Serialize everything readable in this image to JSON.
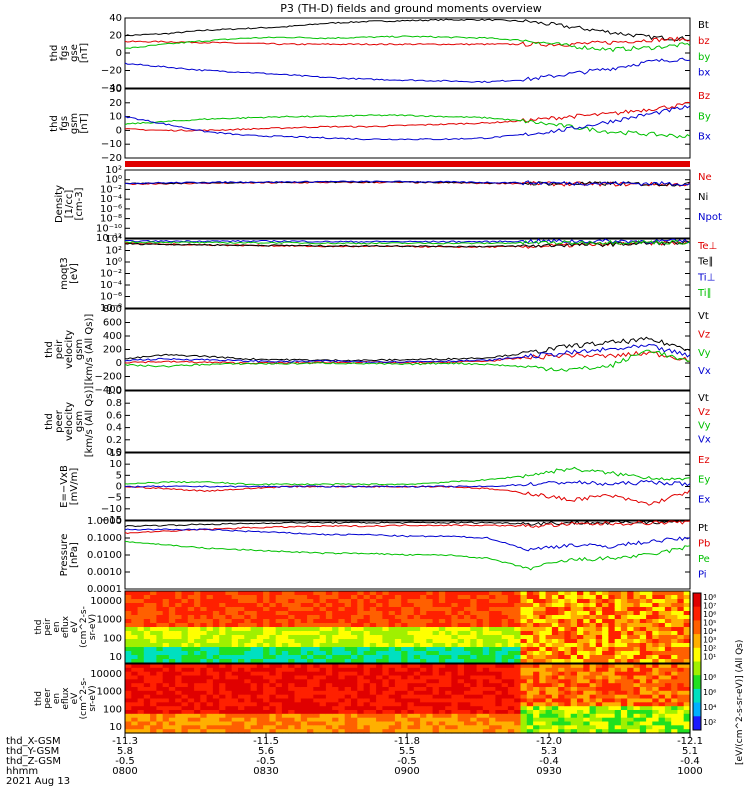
{
  "title": "P3 (TH-D) fields and ground moments overview",
  "footer": {
    "rows": [
      {
        "label": "thd_X-GSM",
        "values": [
          "-11.3",
          "-11.5",
          "-11.8",
          "-12.0",
          "-12.1"
        ]
      },
      {
        "label": "thd_Y-GSM",
        "values": [
          "5.8",
          "5.6",
          "5.5",
          "5.3",
          "5.1"
        ]
      },
      {
        "label": "thd_Z-GSM",
        "values": [
          "-0.5",
          "-0.5",
          "-0.5",
          "-0.4",
          "-0.4"
        ]
      },
      {
        "label": "hhmm",
        "values": [
          "0800",
          "0830",
          "0900",
          "0930",
          "1000"
        ]
      }
    ],
    "date": "2021 Aug 13"
  },
  "colorbar_label": "[eV/(cm^2-s-sr-eV)] (All Qs)",
  "colorbar_ticks": [
    "10⁸",
    "10⁷",
    "10⁶",
    "10⁵",
    "10⁴",
    "10³",
    "10²",
    "10¹"
  ],
  "colorbar2_ticks": [
    "10⁸",
    "10⁶",
    "10⁴",
    "10²"
  ],
  "chart_data": {
    "type": "line",
    "x_range": [
      "0800",
      "1000"
    ],
    "panels": [
      {
        "id": "fgs-gse",
        "ylabel": [
          "thd",
          "fgs",
          "gse",
          "[nT]"
        ],
        "ylim": [
          -40,
          40
        ],
        "ticks": [
          "40",
          "20",
          "0",
          "−20",
          "−40"
        ],
        "legend": [
          {
            "name": "Bt",
            "color": "#000000"
          },
          {
            "name": "bz",
            "color": "#e00000"
          },
          {
            "name": "by",
            "color": "#00c000"
          },
          {
            "name": "bx",
            "color": "#0000d0"
          }
        ],
        "series": [
          {
            "name": "Bt",
            "values": [
              20,
              22,
              26,
              28,
              30,
              34,
              36,
              37,
              38,
              38,
              36,
              30,
              24,
              18,
              16
            ]
          },
          {
            "name": "bz",
            "values": [
              13,
              13,
              12,
              11,
              10,
              10,
              10,
              10,
              10,
              10,
              10,
              10,
              12,
              15,
              16
            ]
          },
          {
            "name": "by",
            "values": [
              5,
              10,
              14,
              17,
              18,
              17,
              18,
              19,
              18,
              17,
              14,
              8,
              4,
              6,
              10
            ]
          },
          {
            "name": "bx",
            "values": [
              -12,
              -16,
              -20,
              -22,
              -25,
              -28,
              -30,
              -31,
              -32,
              -33,
              -30,
              -24,
              -18,
              -10,
              -6
            ]
          }
        ]
      },
      {
        "id": "fgs-gsm",
        "ylabel": [
          "thd",
          "fgs",
          "gsm",
          "[nT]"
        ],
        "ylim": [
          -25,
          30
        ],
        "ticks": [
          "30",
          "20",
          "10",
          "0",
          "−10",
          "−20"
        ],
        "legend": [
          {
            "name": "Bz",
            "color": "#e00000"
          },
          {
            "name": "By",
            "color": "#00c000"
          },
          {
            "name": "Bx",
            "color": "#0000d0"
          }
        ],
        "series": [
          {
            "name": "Bz",
            "values": [
              -2,
              -3,
              -3,
              -2,
              -1,
              0,
              0,
              1,
              2,
              3,
              5,
              8,
              10,
              14,
              18
            ]
          },
          {
            "name": "By",
            "values": [
              2,
              4,
              6,
              7,
              8,
              8,
              9,
              9,
              8,
              7,
              4,
              0,
              -4,
              -6,
              -8
            ]
          },
          {
            "name": "Bx",
            "values": [
              8,
              2,
              -4,
              -7,
              -8,
              -9,
              -10,
              -10,
              -10,
              -9,
              -6,
              -2,
              4,
              10,
              16
            ]
          }
        ]
      },
      {
        "id": "density",
        "ylabel": [
          "Density",
          "[1/cc]",
          "[cm-3]"
        ],
        "ylim": [
          -14,
          3
        ],
        "log": true,
        "ticks": [
          "10²",
          "10⁰",
          "10⁻²",
          "10⁻⁴",
          "10⁻⁶",
          "10⁻⁸",
          "10⁻¹⁰",
          "10⁻¹²"
        ],
        "legend": [
          {
            "name": "Ne",
            "color": "#e00000"
          },
          {
            "name": "Ni",
            "color": "#000000"
          },
          {
            "name": "Npot",
            "color": "#0000d0"
          }
        ],
        "series": [
          {
            "name": "Ne",
            "values": [
              -0.5,
              -0.4,
              -0.3,
              -0.2,
              -0.2,
              -0.1,
              -0.1,
              -0.1,
              -0.2,
              -0.3,
              -0.4,
              -0.5,
              -0.5,
              -0.6,
              -0.6
            ]
          },
          {
            "name": "Ni",
            "values": [
              -0.4,
              -0.3,
              -0.2,
              -0.1,
              -0.1,
              0,
              0,
              0,
              -0.1,
              -0.2,
              -0.3,
              -0.4,
              -0.4,
              -0.5,
              -0.5
            ]
          },
          {
            "name": "Npot",
            "values": [
              -0.3,
              -0.2,
              -0.1,
              0,
              0,
              0.1,
              0.1,
              0.1,
              0,
              -0.1,
              -0.2,
              -0.3,
              -0.3,
              -0.4,
              -0.4
            ]
          }
        ]
      },
      {
        "id": "temperature",
        "ylabel": [
          "moqt3",
          "[eV]"
        ],
        "ylim": [
          -9,
          4
        ],
        "log": true,
        "ticks": [
          "10⁴",
          "10²",
          "10⁰",
          "10⁻²",
          "10⁻⁴",
          "10⁻⁶",
          "10⁻⁸"
        ],
        "legend": [
          {
            "name": "Te⊥",
            "color": "#e00000"
          },
          {
            "name": "Te∥",
            "color": "#000000"
          },
          {
            "name": "Ti⊥",
            "color": "#0000d0"
          },
          {
            "name": "Ti∥",
            "color": "#00c000"
          }
        ],
        "series": [
          {
            "name": "Te⊥",
            "values": [
              3.2,
              3.0,
              2.9,
              2.8,
              2.7,
              2.6,
              2.6,
              2.6,
              2.5,
              2.5,
              2.6,
              2.8,
              3.0,
              3.2,
              3.3
            ]
          },
          {
            "name": "Te∥",
            "values": [
              3.1,
              3.0,
              2.9,
              2.8,
              2.8,
              2.7,
              2.7,
              2.7,
              2.6,
              2.6,
              2.7,
              2.9,
              3.0,
              3.2,
              3.3
            ]
          },
          {
            "name": "Ti⊥",
            "values": [
              3.6,
              3.6,
              3.6,
              3.6,
              3.6,
              3.5,
              3.5,
              3.5,
              3.5,
              3.5,
              3.6,
              3.6,
              3.6,
              3.6,
              3.6
            ]
          },
          {
            "name": "Ti∥",
            "values": [
              3.4,
              3.4,
              3.3,
              3.3,
              3.3,
              3.2,
              3.2,
              3.2,
              3.2,
              3.2,
              3.3,
              3.3,
              3.4,
              3.4,
              3.4
            ]
          }
        ]
      },
      {
        "id": "peir-velocity",
        "ylabel": [
          "thd",
          "peir",
          "velocity",
          "gsm",
          "[km/s (All Qs)]"
        ],
        "ylim": [
          -400,
          800
        ],
        "ticks": [
          "800",
          "600",
          "400",
          "200",
          "0",
          "−200",
          "−400"
        ],
        "legend": [
          {
            "name": "Vt",
            "color": "#000000"
          },
          {
            "name": "Vz",
            "color": "#e00000"
          },
          {
            "name": "Vy",
            "color": "#00c000"
          },
          {
            "name": "Vx",
            "color": "#0000d0"
          }
        ],
        "series": [
          {
            "name": "Vt",
            "values": [
              60,
              120,
              100,
              60,
              50,
              40,
              40,
              50,
              60,
              80,
              150,
              250,
              300,
              350,
              200
            ]
          },
          {
            "name": "Vz",
            "values": [
              10,
              20,
              10,
              0,
              0,
              10,
              10,
              0,
              10,
              30,
              80,
              120,
              100,
              150,
              50
            ]
          },
          {
            "name": "Vy",
            "values": [
              -30,
              -50,
              -20,
              -10,
              -10,
              0,
              -10,
              -20,
              0,
              -20,
              -60,
              -100,
              -50,
              200,
              0
            ]
          },
          {
            "name": "Vx",
            "values": [
              40,
              60,
              50,
              30,
              20,
              30,
              20,
              20,
              30,
              40,
              100,
              150,
              200,
              250,
              100
            ]
          }
        ]
      },
      {
        "id": "peer-velocity",
        "ylabel": [
          "thd",
          "peer",
          "velocity",
          "gsm",
          "[km/s (All Qs)]"
        ],
        "ylim": [
          0,
          1
        ],
        "ticks": [
          "1.0",
          "0.8",
          "0.6",
          "0.4",
          "0.2",
          "0.0"
        ],
        "legend": [
          {
            "name": "Vt",
            "color": "#000000"
          },
          {
            "name": "Vz",
            "color": "#e00000"
          },
          {
            "name": "Vy",
            "color": "#00c000"
          },
          {
            "name": "Vx",
            "color": "#0000d0"
          }
        ],
        "series": []
      },
      {
        "id": "efield",
        "ylabel": [
          "E=−VxB",
          "[mV/m]"
        ],
        "ylim": [
          -15,
          15
        ],
        "ticks": [
          "15",
          "10",
          "5",
          "0",
          "−5",
          "−10",
          "−15"
        ],
        "legend": [
          {
            "name": "Ez",
            "color": "#e00000"
          },
          {
            "name": "Ey",
            "color": "#00c000"
          },
          {
            "name": "Ex",
            "color": "#0000d0"
          }
        ],
        "series": [
          {
            "name": "Ez",
            "values": [
              0,
              -1,
              -2,
              -1,
              0,
              0,
              0,
              0,
              0,
              -1,
              -3,
              -6,
              -4,
              -8,
              -2
            ]
          },
          {
            "name": "Ey",
            "values": [
              1,
              2,
              2,
              1,
              1,
              1,
              1,
              1,
              2,
              3,
              5,
              8,
              6,
              4,
              3
            ]
          },
          {
            "name": "Ex",
            "values": [
              0,
              0,
              0,
              0,
              0,
              0,
              0,
              0,
              0,
              0,
              1,
              2,
              1,
              2,
              1
            ]
          }
        ]
      },
      {
        "id": "pressure",
        "ylabel": [
          "Pressure",
          "[nPa]"
        ],
        "ylim": [
          -4,
          0
        ],
        "log": true,
        "ticks": [
          "1.0000",
          "0.1000",
          "0.0100",
          "0.0010",
          "0.0001"
        ],
        "legend": [
          {
            "name": "Pt",
            "color": "#000000"
          },
          {
            "name": "Pb",
            "color": "#e00000"
          },
          {
            "name": "Pe",
            "color": "#00c000"
          },
          {
            "name": "Pi",
            "color": "#0000d0"
          }
        ],
        "series": [
          {
            "name": "Pt",
            "values": [
              -0.3,
              -0.25,
              -0.2,
              -0.15,
              -0.1,
              -0.1,
              -0.1,
              -0.1,
              -0.1,
              -0.1,
              -0.15,
              -0.1,
              -0.1,
              -0.05,
              0
            ]
          },
          {
            "name": "Pb",
            "values": [
              -0.7,
              -0.6,
              -0.5,
              -0.4,
              -0.35,
              -0.3,
              -0.3,
              -0.25,
              -0.25,
              -0.25,
              -0.3,
              -0.2,
              -0.15,
              -0.1,
              -0.05
            ]
          },
          {
            "name": "Pe",
            "values": [
              -1.2,
              -1.4,
              -1.6,
              -1.7,
              -1.8,
              -1.9,
              -1.9,
              -2.0,
              -2.0,
              -2.2,
              -2.8,
              -2.3,
              -2.2,
              -2.0,
              -1.5
            ]
          },
          {
            "name": "Pi",
            "values": [
              -0.5,
              -0.5,
              -0.5,
              -0.6,
              -0.7,
              -0.8,
              -0.8,
              -0.9,
              -0.9,
              -1.0,
              -1.7,
              -1.4,
              -1.5,
              -1.2,
              -1.0
            ]
          }
        ]
      }
    ],
    "spectrograms": [
      {
        "id": "peir-eflux",
        "ylabel": [
          "thd",
          "peir",
          "en",
          "eflux",
          "eV",
          "(cm^2-s-",
          "sr-eV)"
        ],
        "ylim": [
          1,
          4
        ],
        "log": true,
        "ticks": [
          "10000",
          "1000",
          "100",
          "10"
        ],
        "colorbar_range": [
          1,
          8
        ]
      },
      {
        "id": "peer-eflux",
        "ylabel": [
          "thd",
          "peer",
          "en",
          "eflux",
          "eV",
          "(cm^2-s-",
          "sr-eV)"
        ],
        "ylim": [
          1,
          4
        ],
        "log": true,
        "ticks": [
          "10000",
          "1000",
          "100",
          "10"
        ],
        "colorbar_range": [
          1,
          9
        ]
      }
    ]
  }
}
